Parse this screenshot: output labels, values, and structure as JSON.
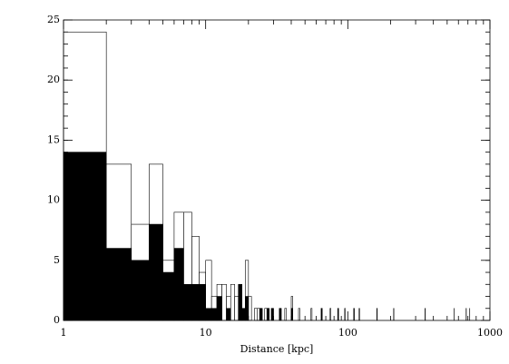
{
  "chart_data": {
    "type": "histogram",
    "x_label": "Distance [kpc]",
    "log_x": true,
    "bins": [
      1,
      2,
      3,
      4,
      5,
      6,
      7,
      8,
      9,
      10,
      11,
      12,
      13,
      14,
      15,
      16,
      17,
      18,
      19,
      20,
      21,
      22,
      23,
      24,
      25,
      26,
      27,
      28,
      29,
      30,
      33,
      34,
      36,
      37,
      40,
      41,
      45,
      46,
      55,
      56,
      65,
      66,
      75,
      76,
      85,
      86,
      95,
      96,
      110,
      111,
      120,
      121,
      160,
      161,
      210,
      211,
      350,
      351,
      560,
      561,
      680,
      681,
      720,
      721
    ],
    "series": [
      {
        "color": "#ffffff",
        "values": [
          24,
          13,
          8,
          13,
          5,
          9,
          9,
          7,
          4,
          5,
          2,
          3,
          3,
          2,
          3,
          2,
          3,
          1,
          5,
          2,
          0,
          1,
          1,
          1,
          0,
          1,
          1,
          0,
          1,
          0,
          1,
          0,
          1,
          0,
          2,
          0,
          1,
          0,
          1,
          0,
          1,
          0,
          1,
          0,
          1,
          0,
          1,
          0,
          1,
          0,
          1,
          0,
          1,
          0,
          1,
          0,
          1,
          0,
          1,
          0,
          1,
          0,
          1
        ]
      },
      {
        "color": "#000000",
        "values": [
          14,
          6,
          5,
          8,
          4,
          6,
          3,
          3,
          3,
          1,
          1,
          2,
          0,
          1,
          0,
          0,
          3,
          1,
          2,
          0,
          0,
          0,
          0,
          1,
          0,
          0,
          1,
          0,
          1,
          0,
          1,
          0,
          0,
          0,
          1,
          0,
          0,
          0,
          0,
          0,
          1,
          0,
          0,
          0,
          1,
          0,
          0,
          0,
          1,
          0,
          0,
          0,
          1,
          0,
          0,
          0,
          1,
          0,
          0,
          0,
          1,
          0,
          0
        ]
      }
    ],
    "xlim": [
      1,
      1000
    ],
    "xticks": [
      1,
      10,
      100,
      1000
    ],
    "ylim": [
      0,
      25
    ],
    "yticks": [
      0,
      5,
      10,
      15,
      20,
      25
    ]
  }
}
